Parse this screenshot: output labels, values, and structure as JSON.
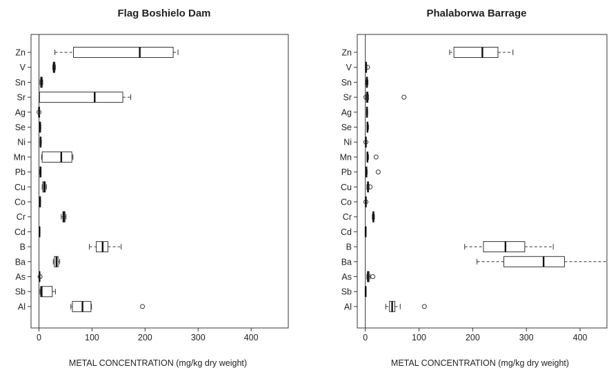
{
  "chart_data": [
    {
      "type": "boxplot",
      "orientation": "horizontal",
      "title": "Flag Boshielo Dam",
      "xlabel": "METAL CONCENTRATION (mg/kg dry weight)",
      "ylabel": "",
      "xlim": [
        -15,
        470
      ],
      "xticks": [
        0,
        100,
        200,
        300,
        400
      ],
      "grid": false,
      "reference_line_at": 0,
      "categories": [
        "Zn",
        "V",
        "Sn",
        "Sr",
        "Ag",
        "Se",
        "Ni",
        "Mn",
        "Pb",
        "Cu",
        "Co",
        "Cr",
        "Cd",
        "B",
        "Ba",
        "As",
        "Sb",
        "Al"
      ],
      "boxes": [
        {
          "min": 30,
          "q1": 65,
          "median": 190,
          "q3": 253,
          "max": 262,
          "outliers": []
        },
        {
          "min": 26,
          "q1": 27,
          "median": 28,
          "q3": 30,
          "max": 31,
          "outliers": []
        },
        {
          "min": 2,
          "q1": 3,
          "median": 5,
          "q3": 6,
          "max": 7,
          "outliers": []
        },
        {
          "min": 0,
          "q1": 1,
          "median": 105,
          "q3": 158,
          "max": 173,
          "outliers": []
        },
        {
          "min": 0,
          "q1": 0,
          "median": 0,
          "q3": 0,
          "max": 0,
          "outliers": [
            0
          ]
        },
        {
          "min": 1,
          "q1": 1.5,
          "median": 2,
          "q3": 3,
          "max": 3.5,
          "outliers": []
        },
        {
          "min": 2,
          "q1": 2.5,
          "median": 3,
          "q3": 4,
          "max": 4.5,
          "outliers": []
        },
        {
          "min": 5,
          "q1": 6,
          "median": 42,
          "q3": 62,
          "max": 64,
          "outliers": []
        },
        {
          "min": 1.5,
          "q1": 2,
          "median": 3,
          "q3": 3.5,
          "max": 4,
          "outliers": []
        },
        {
          "min": 6,
          "q1": 7,
          "median": 10,
          "q3": 12,
          "max": 14,
          "outliers": []
        },
        {
          "min": 1,
          "q1": 1.5,
          "median": 2,
          "q3": 2.5,
          "max": 3,
          "outliers": []
        },
        {
          "min": 42,
          "q1": 45,
          "median": 47,
          "q3": 49,
          "max": 51,
          "outliers": []
        },
        {
          "min": 0,
          "q1": 0.5,
          "median": 1,
          "q3": 1.5,
          "max": 2,
          "outliers": []
        },
        {
          "min": 95,
          "q1": 108,
          "median": 120,
          "q3": 130,
          "max": 155,
          "outliers": []
        },
        {
          "min": 27,
          "q1": 29,
          "median": 33,
          "q3": 36,
          "max": 39,
          "outliers": []
        },
        {
          "min": 0,
          "q1": 0.5,
          "median": 1,
          "q3": 1.5,
          "max": 2,
          "outliers": [
            2
          ]
        },
        {
          "min": 2,
          "q1": 3,
          "median": 5,
          "q3": 25,
          "max": 31,
          "outliers": []
        },
        {
          "min": 60,
          "q1": 63,
          "median": 82,
          "q3": 98,
          "max": 99,
          "outliers": [
            195
          ]
        }
      ]
    },
    {
      "type": "boxplot",
      "orientation": "horizontal",
      "title": "Phalaborwa Barrage",
      "xlabel": "METAL CONCENTRATION (mg/kg dry weight)",
      "ylabel": "",
      "xlim": [
        -15,
        450
      ],
      "xticks": [
        0,
        100,
        200,
        300,
        400
      ],
      "grid": false,
      "reference_line_at": 0,
      "categories": [
        "Zn",
        "V",
        "Sn",
        "Sr",
        "Ag",
        "Se",
        "Ni",
        "Mn",
        "Pb",
        "Cu",
        "Co",
        "Cr",
        "Cd",
        "B",
        "Ba",
        "As",
        "Sb",
        "Al"
      ],
      "boxes": [
        {
          "min": 157,
          "q1": 165,
          "median": 218,
          "q3": 247,
          "max": 275,
          "outliers": []
        },
        {
          "min": 0,
          "q1": 1,
          "median": 1.5,
          "q3": 2,
          "max": 3,
          "outliers": [
            4
          ]
        },
        {
          "min": 1,
          "q1": 2,
          "median": 3,
          "q3": 4,
          "max": 5,
          "outliers": []
        },
        {
          "min": 1,
          "q1": 2,
          "median": 4,
          "q3": 5,
          "max": 6,
          "outliers": [
            72,
            1
          ]
        },
        {
          "min": 2,
          "q1": 2.5,
          "median": 3,
          "q3": 4,
          "max": 4.5,
          "outliers": []
        },
        {
          "min": 3,
          "q1": 3.5,
          "median": 4,
          "q3": 5,
          "max": 6,
          "outliers": []
        },
        {
          "min": 0,
          "q1": 0.5,
          "median": 1,
          "q3": 1.5,
          "max": 2,
          "outliers": [
            1
          ]
        },
        {
          "min": 3,
          "q1": 3.5,
          "median": 4,
          "q3": 5,
          "max": 6,
          "outliers": [
            20
          ]
        },
        {
          "min": 1,
          "q1": 1.5,
          "median": 2,
          "q3": 3,
          "max": 3.5,
          "outliers": [
            24
          ]
        },
        {
          "min": 3,
          "q1": 4,
          "median": 5,
          "q3": 6,
          "max": 7,
          "outliers": [
            9
          ]
        },
        {
          "min": 0,
          "q1": 0.5,
          "median": 1,
          "q3": 1.5,
          "max": 2,
          "outliers": [
            1
          ]
        },
        {
          "min": 13,
          "q1": 14,
          "median": 15,
          "q3": 16,
          "max": 17,
          "outliers": []
        },
        {
          "min": 0,
          "q1": 0.3,
          "median": 0.5,
          "q3": 1,
          "max": 1.5,
          "outliers": []
        },
        {
          "min": 185,
          "q1": 220,
          "median": 261,
          "q3": 297,
          "max": 350,
          "outliers": []
        },
        {
          "min": 208,
          "q1": 258,
          "median": 332,
          "q3": 371,
          "max": 450,
          "outliers": []
        },
        {
          "min": 3,
          "q1": 4,
          "median": 5,
          "q3": 7,
          "max": 9,
          "outliers": [
            14
          ]
        },
        {
          "min": 0,
          "q1": 0.3,
          "median": 0.5,
          "q3": 1,
          "max": 1.5,
          "outliers": []
        },
        {
          "min": 38,
          "q1": 45,
          "median": 50,
          "q3": 55,
          "max": 65,
          "outliers": [
            110
          ]
        }
      ]
    }
  ]
}
